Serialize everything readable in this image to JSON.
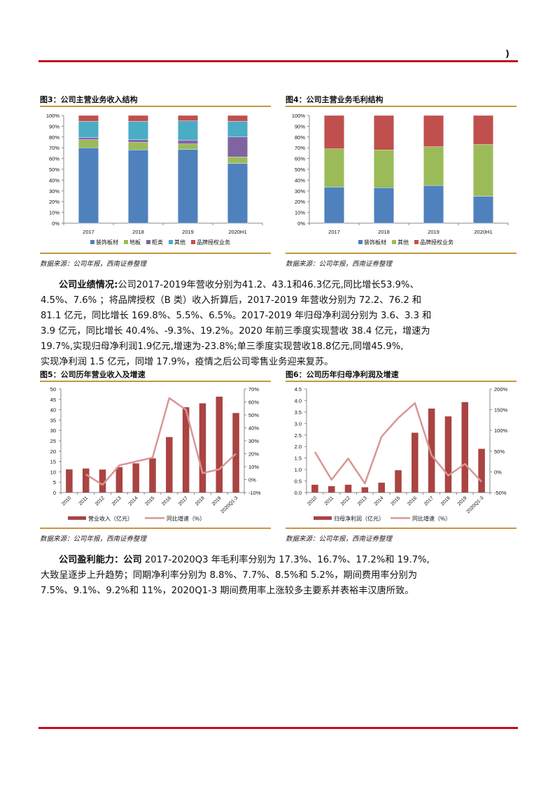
{
  "header": {
    "mark": ")"
  },
  "fig3": {
    "title": "图3：公司主营业务收入结构",
    "source": "数据来源：公司年报，西南证券整理"
  },
  "fig4": {
    "title": "图4：公司主营业务毛利结构",
    "source": "数据来源：公司年报，西南证券整理"
  },
  "fig5": {
    "title": "图5：公司历年营业收入及增速",
    "source": "数据来源：公司年报，西南证券整理"
  },
  "fig6": {
    "title": "图6：公司历年归母净利润及增速",
    "source": "数据来源：公司年报，西南证券整理"
  },
  "para1": {
    "lead": "公司业绩情况:",
    "lines": [
      "公司2017-2019年营收分别为41.2、43.1和46.3亿元,同比增长53.9%、",
      "4.5%、7.6% ；将品牌授权（B 类）收入折算后，2017-2019 年营收分别为 72.2、76.2 和",
      "81.1 亿元，同比增长 169.8%、5.5%、6.5%。2017-2019 年归母净利润分别为 3.6、3.3 和",
      "3.9 亿元，同比增长 40.4%、-9.3%、19.2%。2020 年前三季度实现营收 38.4 亿元，增速为",
      "19.7%,实现归母净利润1.9亿元,增速为-23.8%;单三季度实现营收18.8亿元,同增45.9%,",
      "实现净利润 1.5 亿元，同增 17.9%，疫情之后公司零售业务迎来复苏。"
    ]
  },
  "para2": {
    "lead": "公司盈利能力：公司",
    "lines": [
      " 2017-2020Q3 年毛利率分别为 17.3%、16.7%、17.2%和 19.7%,",
      "大致呈逐步上升趋势；同期净利率分别为 8.8%、7.7%、8.5%和 5.2%，期间费用率分别为",
      "7.5%、9.1%、9.2%和 11%，2020Q1-3 期间费用率上涨较多主要系并表裕丰汉唐所致。"
    ]
  },
  "chart_data": [
    {
      "type": "bar",
      "stacked": true,
      "title": "图3：公司主营业务收入结构",
      "categories": [
        "2017",
        "2018",
        "2019",
        "2020H1"
      ],
      "series": [
        {
          "name": "装饰板材",
          "color": "#4f81bd",
          "values": [
            70,
            68,
            68.5,
            55.5
          ]
        },
        {
          "name": "地板",
          "color": "#9bbb59",
          "values": [
            7.5,
            7,
            5,
            6
          ]
        },
        {
          "name": "柜类",
          "color": "#8064a2",
          "values": [
            2,
            2.5,
            3.5,
            18.5
          ]
        },
        {
          "name": "其他",
          "color": "#4bacc6",
          "values": [
            15,
            17,
            18,
            14.5
          ]
        },
        {
          "name": "品牌授权业务",
          "color": "#c0504d",
          "values": [
            5.5,
            5.5,
            5,
            5.5
          ]
        }
      ],
      "yticks": [
        "0%",
        "10%",
        "20%",
        "30%",
        "40%",
        "50%",
        "60%",
        "70%",
        "80%",
        "90%",
        "100%"
      ],
      "ylim": [
        0,
        100
      ],
      "legend_position": "bottom"
    },
    {
      "type": "bar",
      "stacked": true,
      "title": "图4：公司主营业务毛利结构",
      "categories": [
        "2017",
        "2018",
        "2019",
        "2020H1"
      ],
      "series": [
        {
          "name": "装饰板材",
          "color": "#4f81bd",
          "values": [
            33.5,
            33,
            35,
            25
          ]
        },
        {
          "name": "其他",
          "color": "#9bbb59",
          "values": [
            35.5,
            35,
            36,
            48
          ]
        },
        {
          "name": "品牌授权业务",
          "color": "#c0504d",
          "values": [
            31,
            32,
            29,
            27
          ]
        }
      ],
      "yticks": [
        "0%",
        "10%",
        "20%",
        "30%",
        "40%",
        "50%",
        "60%",
        "70%",
        "80%",
        "90%",
        "100%"
      ],
      "ylim": [
        0,
        100
      ],
      "legend_position": "bottom"
    },
    {
      "type": "bar+line",
      "title": "图5：公司历年营业收入及增速",
      "categories": [
        "2010",
        "2011",
        "2012",
        "2013",
        "2014",
        "2015",
        "2016",
        "2017",
        "2018",
        "2019",
        "2020Q1-3"
      ],
      "series": [
        {
          "name": "营业收入（亿元）",
          "type": "bar",
          "axis": "left",
          "color": "#a94442",
          "values": [
            11.2,
            11.6,
            11.1,
            12.3,
            14.1,
            16.5,
            26.8,
            41.2,
            43.1,
            46.3,
            38.4
          ]
        },
        {
          "name": "同比增速（%）",
          "type": "line",
          "axis": "right",
          "color": "#d99694",
          "values": [
            null,
            4,
            -4,
            11,
            14,
            17,
            63,
            54,
            5,
            8,
            20
          ]
        }
      ],
      "ylim_left": [
        0,
        50
      ],
      "yticks_left": [
        "0",
        "5",
        "10",
        "15",
        "20",
        "25",
        "30",
        "35",
        "40",
        "45",
        "50"
      ],
      "ylim_right": [
        -10,
        70
      ],
      "yticks_right": [
        "-10%",
        "0%",
        "10%",
        "20%",
        "30%",
        "40%",
        "50%",
        "60%",
        "70%"
      ],
      "legend_position": "bottom"
    },
    {
      "type": "bar+line",
      "title": "图6：公司历年归母净利润及增速",
      "categories": [
        "2010",
        "2011",
        "2012",
        "2013",
        "2014",
        "2015",
        "2016",
        "2017",
        "2018",
        "2019",
        "2020Q1-3"
      ],
      "series": [
        {
          "name": "归母净利润（亿元）",
          "type": "bar",
          "axis": "left",
          "color": "#a94442",
          "values": [
            0.34,
            0.28,
            0.34,
            0.23,
            0.43,
            0.97,
            2.6,
            3.65,
            3.31,
            3.93,
            1.9
          ]
        },
        {
          "name": "同比增速（%）",
          "type": "line",
          "axis": "right",
          "color": "#d99694",
          "values": [
            48,
            -19,
            32,
            -28,
            85,
            130,
            166,
            40,
            -9,
            19,
            -24
          ]
        }
      ],
      "ylim_left": [
        0,
        4.5
      ],
      "yticks_left": [
        "0.0",
        "0.5",
        "1.0",
        "1.5",
        "2.0",
        "2.5",
        "3.0",
        "3.5",
        "4.0",
        "4.5"
      ],
      "ylim_right": [
        -50,
        200
      ],
      "yticks_right": [
        "-50%",
        "0%",
        "50%",
        "100%",
        "150%",
        "200%"
      ],
      "legend_position": "bottom"
    }
  ]
}
